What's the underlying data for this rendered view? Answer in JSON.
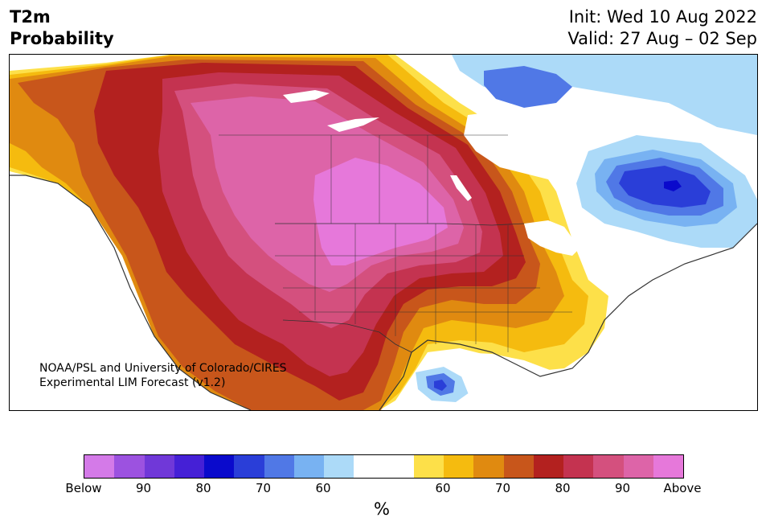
{
  "title": {
    "left_line1": "T2m",
    "left_line2": "Probability",
    "right_line1": "Init: Wed 10 Aug 2022",
    "right_line2": "Valid: 27 Aug – 02 Sep"
  },
  "credit": {
    "line1": "NOAA/PSL and University of Colorado/CIRES",
    "line2": "Experimental LIM Forecast (v1.2)"
  },
  "colorbar": {
    "unit": "%",
    "colors": [
      "#d47ae8",
      "#9c52e0",
      "#7038d8",
      "#4520d6",
      "#0a0acc",
      "#2a3ed8",
      "#5078e6",
      "#78b2f2",
      "#acdaf8",
      "#ffffff",
      "#ffffff",
      "#fde049",
      "#f5bb0f",
      "#e08a10",
      "#c8561b",
      "#b3211f",
      "#c43350",
      "#d4507e",
      "#dd64a8",
      "#e678da"
    ],
    "ticks": [
      "Below",
      "90",
      "80",
      "70",
      "60",
      "60",
      "70",
      "80",
      "90",
      "Above"
    ]
  },
  "map": {
    "colors": {
      "above": "#e678da",
      "p90a": "#dd64a8",
      "p85a": "#d4507e",
      "p80a": "#c43350",
      "p75a": "#b3211f",
      "p70a": "#c8561b",
      "p65a": "#e08a10",
      "p60a": "#f5bb0f",
      "p55a": "#fde049",
      "neutral": "#ffffff",
      "b55": "#acdaf8",
      "b60": "#78b2f2",
      "b65": "#5078e6",
      "b70": "#2a3ed8",
      "b80": "#0a0acc",
      "border": "#333333"
    }
  }
}
